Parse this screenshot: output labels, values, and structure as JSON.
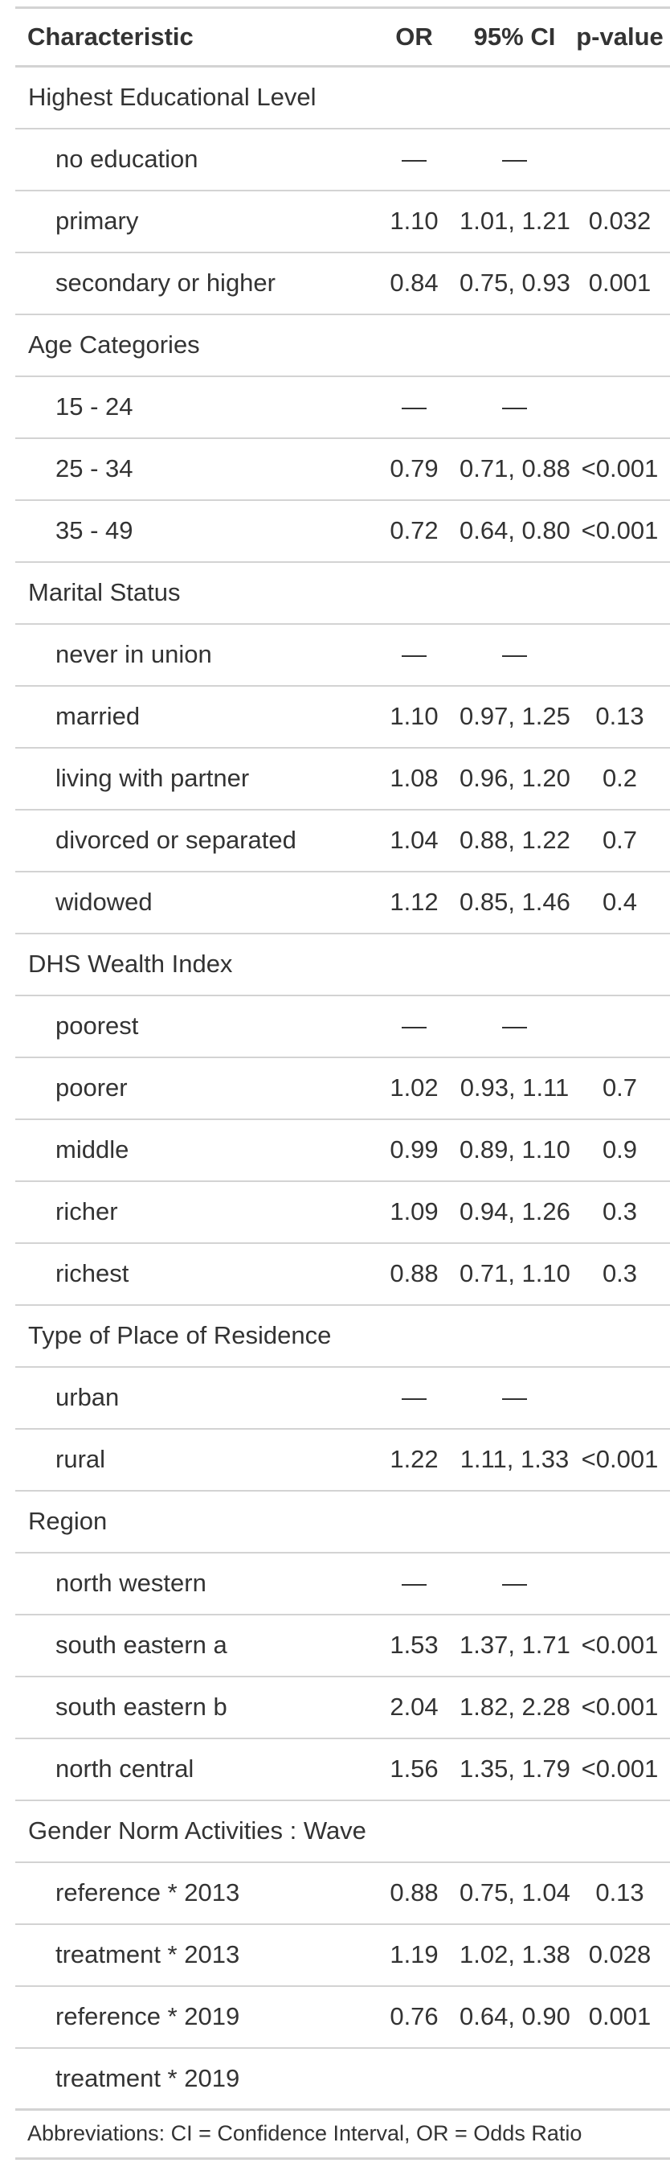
{
  "header": {
    "characteristic": "Characteristic",
    "or": "OR",
    "ci": "95% CI",
    "p": "p-value"
  },
  "rows": [
    {
      "type": "group",
      "label": "Highest Educational Level"
    },
    {
      "type": "level",
      "label": "no education",
      "or": "—",
      "ci": "—",
      "p": ""
    },
    {
      "type": "level",
      "label": "primary",
      "or": "1.10",
      "ci": "1.01, 1.21",
      "p": "0.032"
    },
    {
      "type": "level",
      "label": "secondary or higher",
      "or": "0.84",
      "ci": "0.75, 0.93",
      "p": "0.001"
    },
    {
      "type": "group",
      "label": "Age Categories"
    },
    {
      "type": "level",
      "label": "15 - 24",
      "or": "—",
      "ci": "—",
      "p": ""
    },
    {
      "type": "level",
      "label": "25 - 34",
      "or": "0.79",
      "ci": "0.71, 0.88",
      "p": "<0.001"
    },
    {
      "type": "level",
      "label": "35 - 49",
      "or": "0.72",
      "ci": "0.64, 0.80",
      "p": "<0.001"
    },
    {
      "type": "group",
      "label": "Marital Status"
    },
    {
      "type": "level",
      "label": "never in union",
      "or": "—",
      "ci": "—",
      "p": ""
    },
    {
      "type": "level",
      "label": "married",
      "or": "1.10",
      "ci": "0.97, 1.25",
      "p": "0.13"
    },
    {
      "type": "level",
      "label": "living with partner",
      "or": "1.08",
      "ci": "0.96, 1.20",
      "p": "0.2"
    },
    {
      "type": "level",
      "label": "divorced or separated",
      "or": "1.04",
      "ci": "0.88, 1.22",
      "p": "0.7"
    },
    {
      "type": "level",
      "label": "widowed",
      "or": "1.12",
      "ci": "0.85, 1.46",
      "p": "0.4"
    },
    {
      "type": "group",
      "label": "DHS Wealth Index"
    },
    {
      "type": "level",
      "label": "poorest",
      "or": "—",
      "ci": "—",
      "p": ""
    },
    {
      "type": "level",
      "label": "poorer",
      "or": "1.02",
      "ci": "0.93, 1.11",
      "p": "0.7"
    },
    {
      "type": "level",
      "label": "middle",
      "or": "0.99",
      "ci": "0.89, 1.10",
      "p": "0.9"
    },
    {
      "type": "level",
      "label": "richer",
      "or": "1.09",
      "ci": "0.94, 1.26",
      "p": "0.3"
    },
    {
      "type": "level",
      "label": "richest",
      "or": "0.88",
      "ci": "0.71, 1.10",
      "p": "0.3"
    },
    {
      "type": "group",
      "label": "Type of Place of Residence"
    },
    {
      "type": "level",
      "label": "urban",
      "or": "—",
      "ci": "—",
      "p": ""
    },
    {
      "type": "level",
      "label": "rural",
      "or": "1.22",
      "ci": "1.11, 1.33",
      "p": "<0.001"
    },
    {
      "type": "group",
      "label": "Region"
    },
    {
      "type": "level",
      "label": "north western",
      "or": "—",
      "ci": "—",
      "p": ""
    },
    {
      "type": "level",
      "label": "south eastern a",
      "or": "1.53",
      "ci": "1.37, 1.71",
      "p": "<0.001"
    },
    {
      "type": "level",
      "label": "south eastern b",
      "or": "2.04",
      "ci": "1.82, 2.28",
      "p": "<0.001"
    },
    {
      "type": "level",
      "label": "north central",
      "or": "1.56",
      "ci": "1.35, 1.79",
      "p": "<0.001"
    },
    {
      "type": "group",
      "label": "Gender Norm Activities : Wave"
    },
    {
      "type": "level",
      "label": "reference * 2013",
      "or": "0.88",
      "ci": "0.75, 1.04",
      "p": "0.13"
    },
    {
      "type": "level",
      "label": "treatment * 2013",
      "or": "1.19",
      "ci": "1.02, 1.38",
      "p": "0.028"
    },
    {
      "type": "level",
      "label": "reference * 2019",
      "or": "0.76",
      "ci": "0.64, 0.90",
      "p": "0.001"
    },
    {
      "type": "level",
      "label": "treatment * 2019",
      "or": "",
      "ci": "",
      "p": ""
    }
  ],
  "footnote": "Abbreviations: CI = Confidence Interval, OR = Odds Ratio",
  "colors": {
    "text": "#333333",
    "rule": "#d3d3d3",
    "background": "#ffffff"
  }
}
